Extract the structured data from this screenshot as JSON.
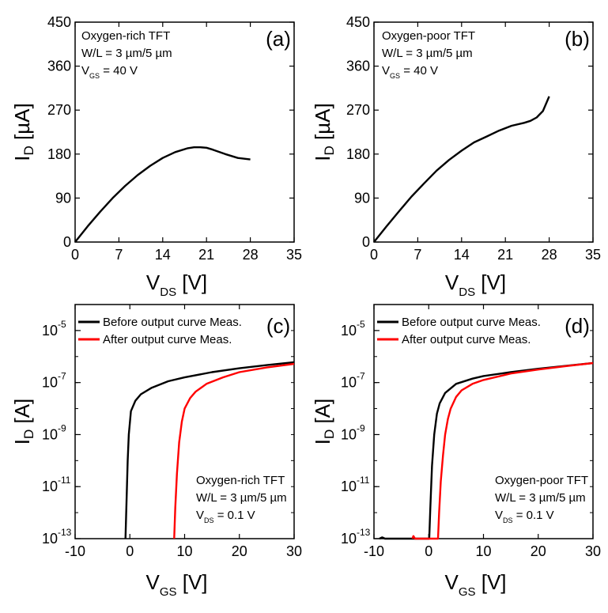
{
  "chart_data": [
    {
      "panel_label": "(a)",
      "type": "line",
      "xlabel": {
        "main": "V",
        "sub": "DS",
        "unit": " [V]"
      },
      "ylabel": {
        "main": "I",
        "sub": "D",
        "unit": " [µA]"
      },
      "xlim": [
        0,
        35
      ],
      "ylim": [
        0,
        450
      ],
      "xticks": [
        "0",
        "7",
        "14",
        "21",
        "28",
        "35"
      ],
      "yticks": [
        "0",
        "90",
        "180",
        "270",
        "360",
        "450"
      ],
      "annotations": [
        "Oxygen-rich TFT",
        "W/L = 3 µm/5 µm",
        {
          "main": "V",
          "sub": "GS",
          "rest": " = 40 V"
        }
      ],
      "series": [
        {
          "color": "#000000",
          "x": [
            0,
            2,
            4,
            6,
            8,
            10,
            12,
            14,
            16,
            18,
            19,
            20,
            21,
            22,
            24,
            26,
            28
          ],
          "y": [
            0,
            32,
            62,
            90,
            115,
            137,
            156,
            172,
            184,
            192,
            194,
            194,
            193,
            189,
            180,
            172,
            169
          ]
        }
      ]
    },
    {
      "panel_label": "(b)",
      "type": "line",
      "xlabel": {
        "main": "V",
        "sub": "DS",
        "unit": " [V]"
      },
      "ylabel": {
        "main": "I",
        "sub": "D",
        "unit": " [µA]"
      },
      "xlim": [
        0,
        35
      ],
      "ylim": [
        0,
        450
      ],
      "xticks": [
        "0",
        "7",
        "14",
        "21",
        "28",
        "35"
      ],
      "yticks": [
        "0",
        "90",
        "180",
        "270",
        "360",
        "450"
      ],
      "annotations": [
        "Oxygen-poor TFT",
        "W/L = 3 µm/5 µm",
        {
          "main": "V",
          "sub": "GS",
          "rest": " = 40 V"
        }
      ],
      "series": [
        {
          "color": "#000000",
          "x": [
            0,
            2,
            4,
            6,
            8,
            10,
            12,
            14,
            16,
            18,
            20,
            22,
            24,
            25,
            26,
            27,
            28
          ],
          "y": [
            0,
            32,
            63,
            93,
            120,
            146,
            168,
            187,
            204,
            216,
            228,
            238,
            244,
            248,
            255,
            268,
            298
          ]
        }
      ]
    },
    {
      "panel_label": "(c)",
      "type": "line",
      "y_scale": "log",
      "xlabel": {
        "main": "V",
        "sub": "GS",
        "unit": " [V]"
      },
      "ylabel": {
        "main": "I",
        "sub": "D",
        "unit": " [A]"
      },
      "xlim": [
        -10,
        30
      ],
      "ylim_exp": [
        -13,
        -4
      ],
      "xticks": [
        "-10",
        "0",
        "10",
        "20",
        "30"
      ],
      "yticks_exp": [
        "-13",
        "-11",
        "-9",
        "-7",
        "-5"
      ],
      "legend": [
        "Before output curve Meas.",
        "After output curve Meas."
      ],
      "annotations": [
        "Oxygen-rich TFT",
        "W/L = 3 µm/5 µm",
        {
          "main": "V",
          "sub": "DS",
          "rest": " = 0.1 V"
        }
      ],
      "series": [
        {
          "name": "Before output curve Meas.",
          "color": "#000000",
          "x": [
            -0.8,
            -0.6,
            -0.4,
            -0.2,
            0.2,
            1,
            2,
            4,
            7,
            10,
            15,
            20,
            25,
            30
          ],
          "y": [
            -13,
            -11.5,
            -10,
            -9,
            -8.1,
            -7.7,
            -7.45,
            -7.2,
            -6.95,
            -6.8,
            -6.6,
            -6.45,
            -6.33,
            -6.22
          ]
        },
        {
          "name": "After output curve Meas.",
          "color": "#ff0000",
          "x": [
            8.1,
            8.3,
            8.6,
            9,
            9.5,
            10,
            11,
            12,
            14,
            17,
            20,
            25,
            30
          ],
          "y": [
            -13,
            -11.8,
            -10.5,
            -9.3,
            -8.5,
            -8,
            -7.6,
            -7.35,
            -7.05,
            -6.8,
            -6.6,
            -6.42,
            -6.28
          ]
        }
      ]
    },
    {
      "panel_label": "(d)",
      "type": "line",
      "y_scale": "log",
      "xlabel": {
        "main": "V",
        "sub": "GS",
        "unit": " [V]"
      },
      "ylabel": {
        "main": "I",
        "sub": "D",
        "unit": " [A]"
      },
      "xlim": [
        -10,
        30
      ],
      "ylim_exp": [
        -13,
        -4
      ],
      "xticks": [
        "-10",
        "0",
        "10",
        "20",
        "30"
      ],
      "yticks_exp": [
        "-13",
        "-11",
        "-9",
        "-7",
        "-5"
      ],
      "legend": [
        "Before output curve Meas.",
        "After output curve Meas."
      ],
      "annotations": [
        "Oxygen-poor TFT",
        "W/L = 3 µm/5 µm",
        {
          "main": "V",
          "sub": "DS",
          "rest": " = 0.1 V"
        }
      ],
      "series": [
        {
          "name": "Before output curve Meas.",
          "color": "#000000",
          "x": [
            -9,
            -8.5,
            -8,
            -7,
            -6,
            -5,
            -4,
            -3,
            -2,
            -1,
            0.1,
            0.3,
            0.6,
            1,
            1.5,
            2,
            3,
            5,
            8,
            10,
            15,
            20,
            25,
            30
          ],
          "y": [
            -13,
            -12.95,
            -13,
            -13,
            -13,
            -13,
            -13,
            -13,
            -13,
            -13,
            -13,
            -11.8,
            -10.2,
            -9,
            -8.2,
            -7.8,
            -7.4,
            -7.05,
            -6.85,
            -6.75,
            -6.6,
            -6.47,
            -6.36,
            -6.25
          ]
        },
        {
          "name": "After output curve Meas.",
          "color": "#ff0000",
          "x": [
            -3,
            -2.8,
            -2.5,
            1.7,
            1.9,
            2.2,
            2.6,
            3,
            3.5,
            4,
            5,
            6,
            8,
            10,
            15,
            20,
            25,
            30
          ],
          "y": [
            -13,
            -12.9,
            -13,
            -13,
            -12,
            -10.8,
            -9.8,
            -9,
            -8.4,
            -8,
            -7.55,
            -7.3,
            -7.05,
            -6.9,
            -6.65,
            -6.5,
            -6.37,
            -6.25
          ]
        }
      ]
    }
  ]
}
